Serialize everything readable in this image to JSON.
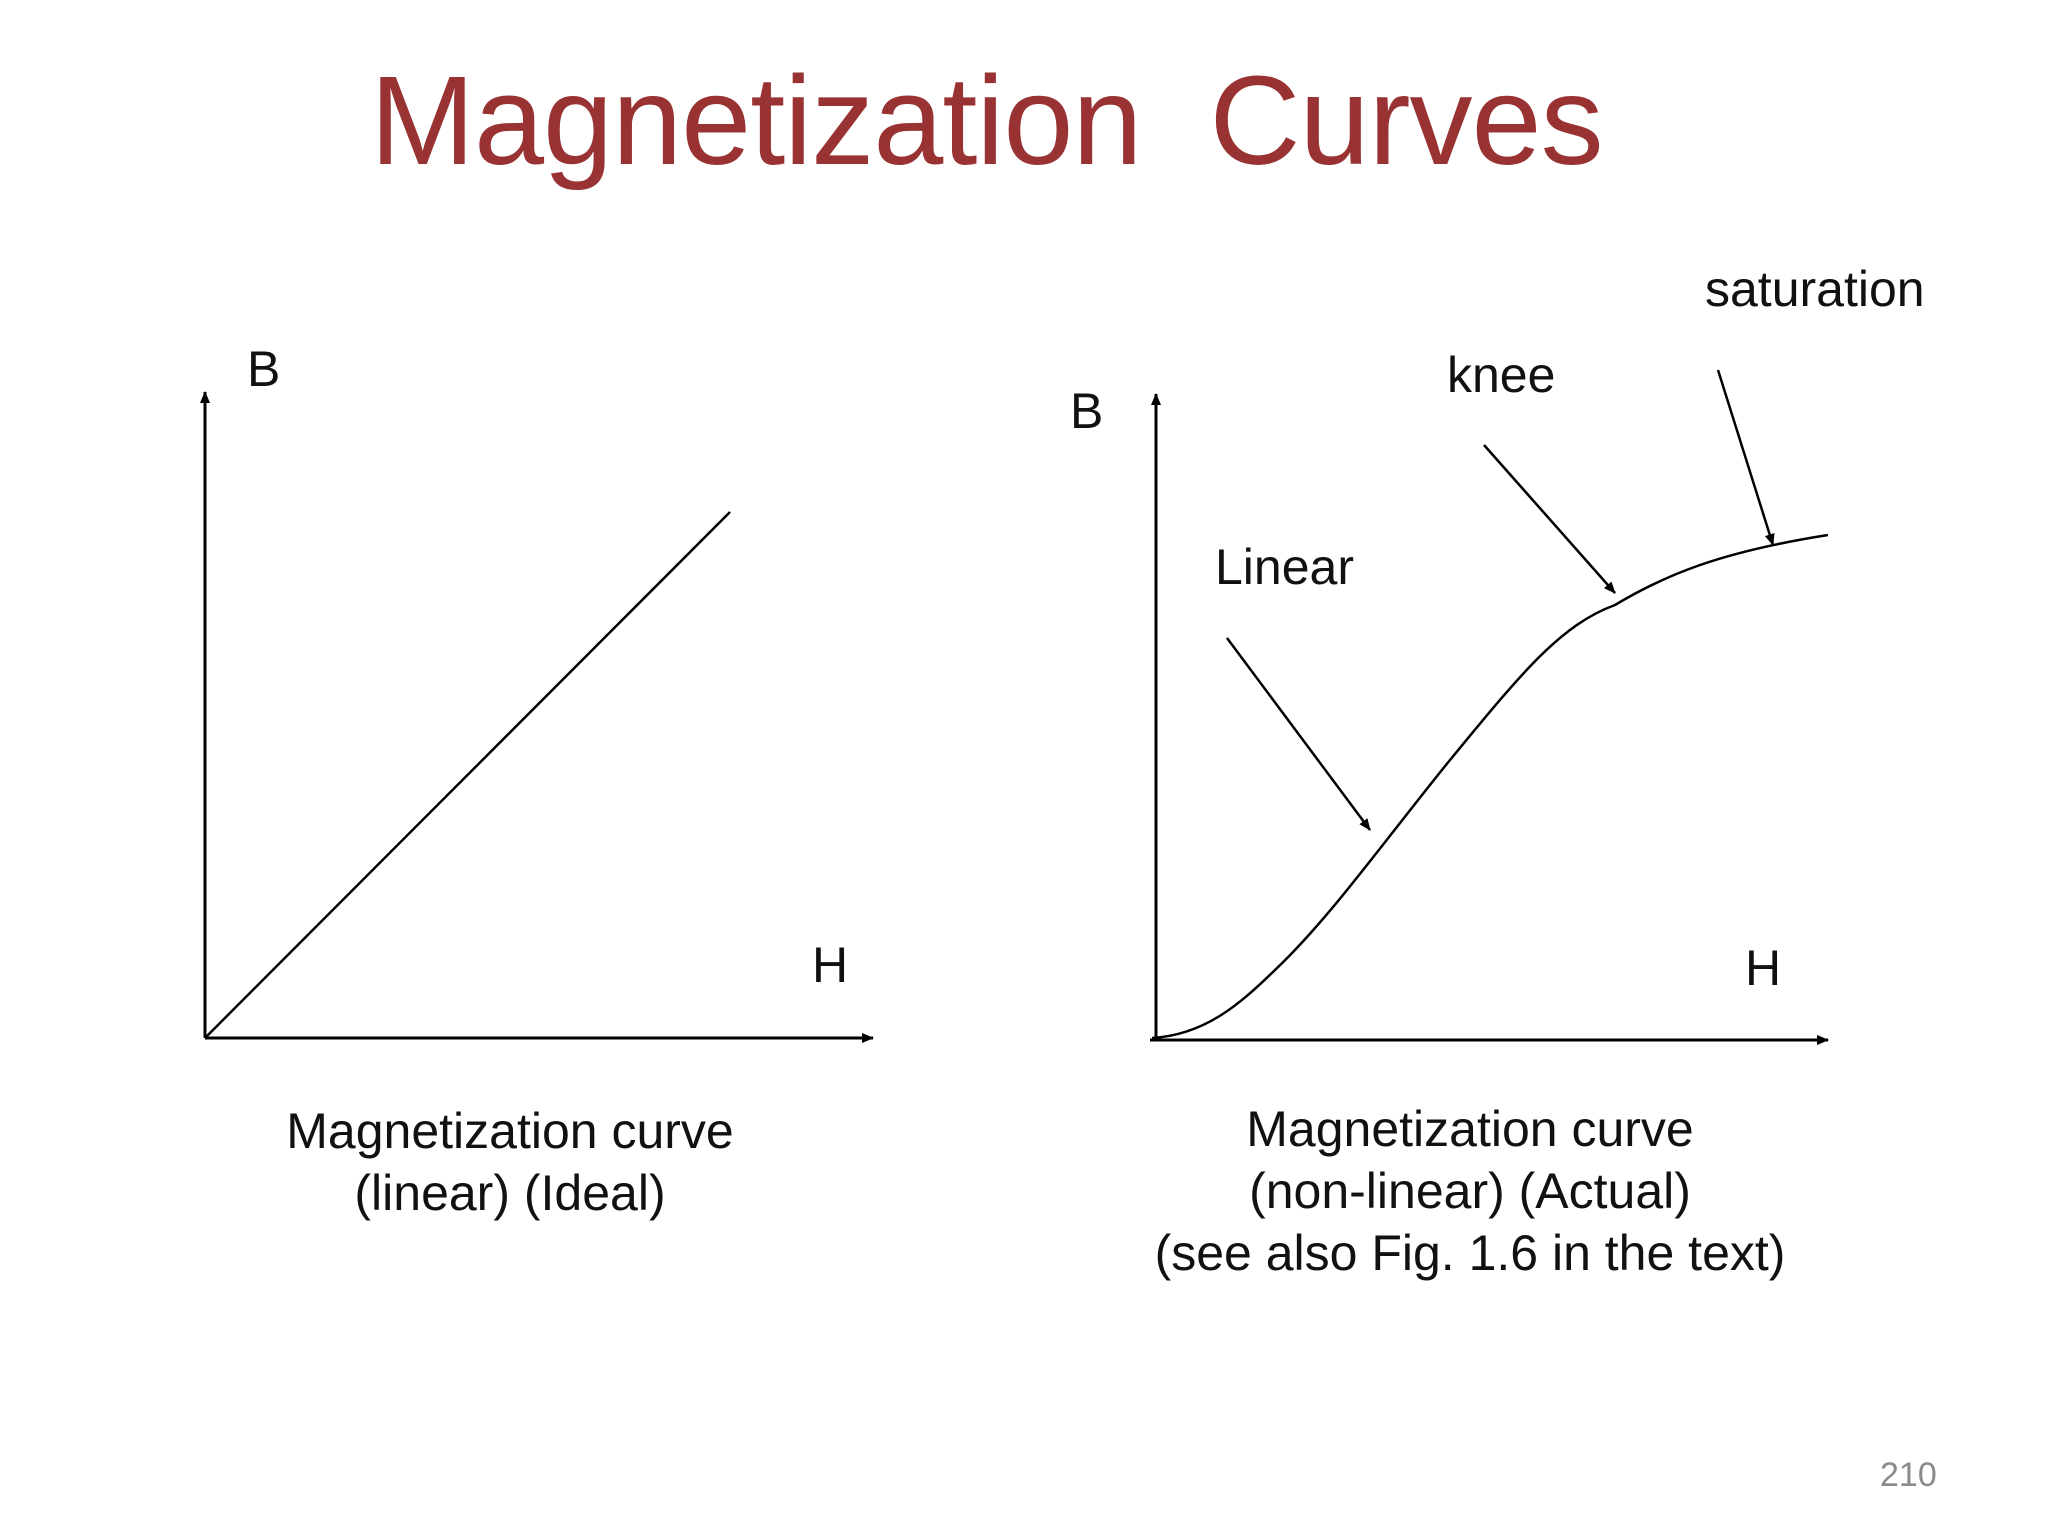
{
  "title": "Magnetization  Curves",
  "page_number": "210",
  "left_diagram": {
    "y_axis_label": "B",
    "x_axis_label": "H",
    "caption_lines": [
      "Magnetization curve",
      "(linear) (Ideal)"
    ]
  },
  "right_diagram": {
    "y_axis_label": "B",
    "x_axis_label": "H",
    "annotations": {
      "linear": "Linear",
      "knee": "knee",
      "saturation": "saturation"
    },
    "caption_lines": [
      "Magnetization curve",
      "(non-linear) (Actual)",
      "(see also Fig. 1.6 in the text)"
    ]
  },
  "colors": {
    "title": "#993333",
    "line": "#000000",
    "page_number": "#8a8a8a"
  }
}
